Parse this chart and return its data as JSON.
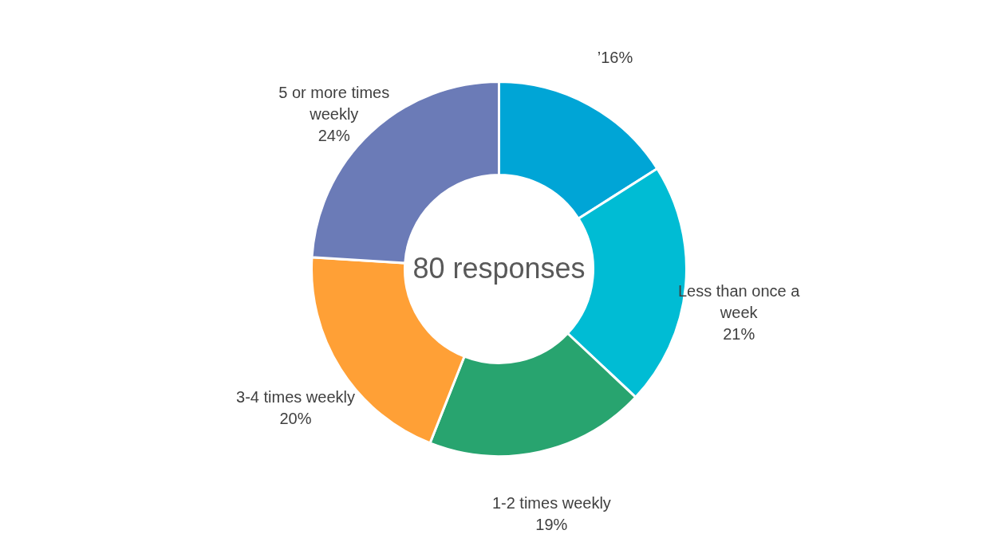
{
  "chart_data": {
    "type": "donut",
    "categories": [
      "’",
      "Less than once a week",
      "1-2 times weekly",
      "3-4 times weekly",
      "5 or more times weekly"
    ],
    "values": [
      16,
      21,
      19,
      20,
      24
    ],
    "value_labels": [
      "16%",
      "21%",
      "19%",
      "20%",
      "24%"
    ],
    "colors": [
      "#00a5d6",
      "#00bcd4",
      "#28a46f",
      "#ffa036",
      "#6b7bb7"
    ],
    "annotations": [
      "80 responses"
    ],
    "legend": false
  }
}
